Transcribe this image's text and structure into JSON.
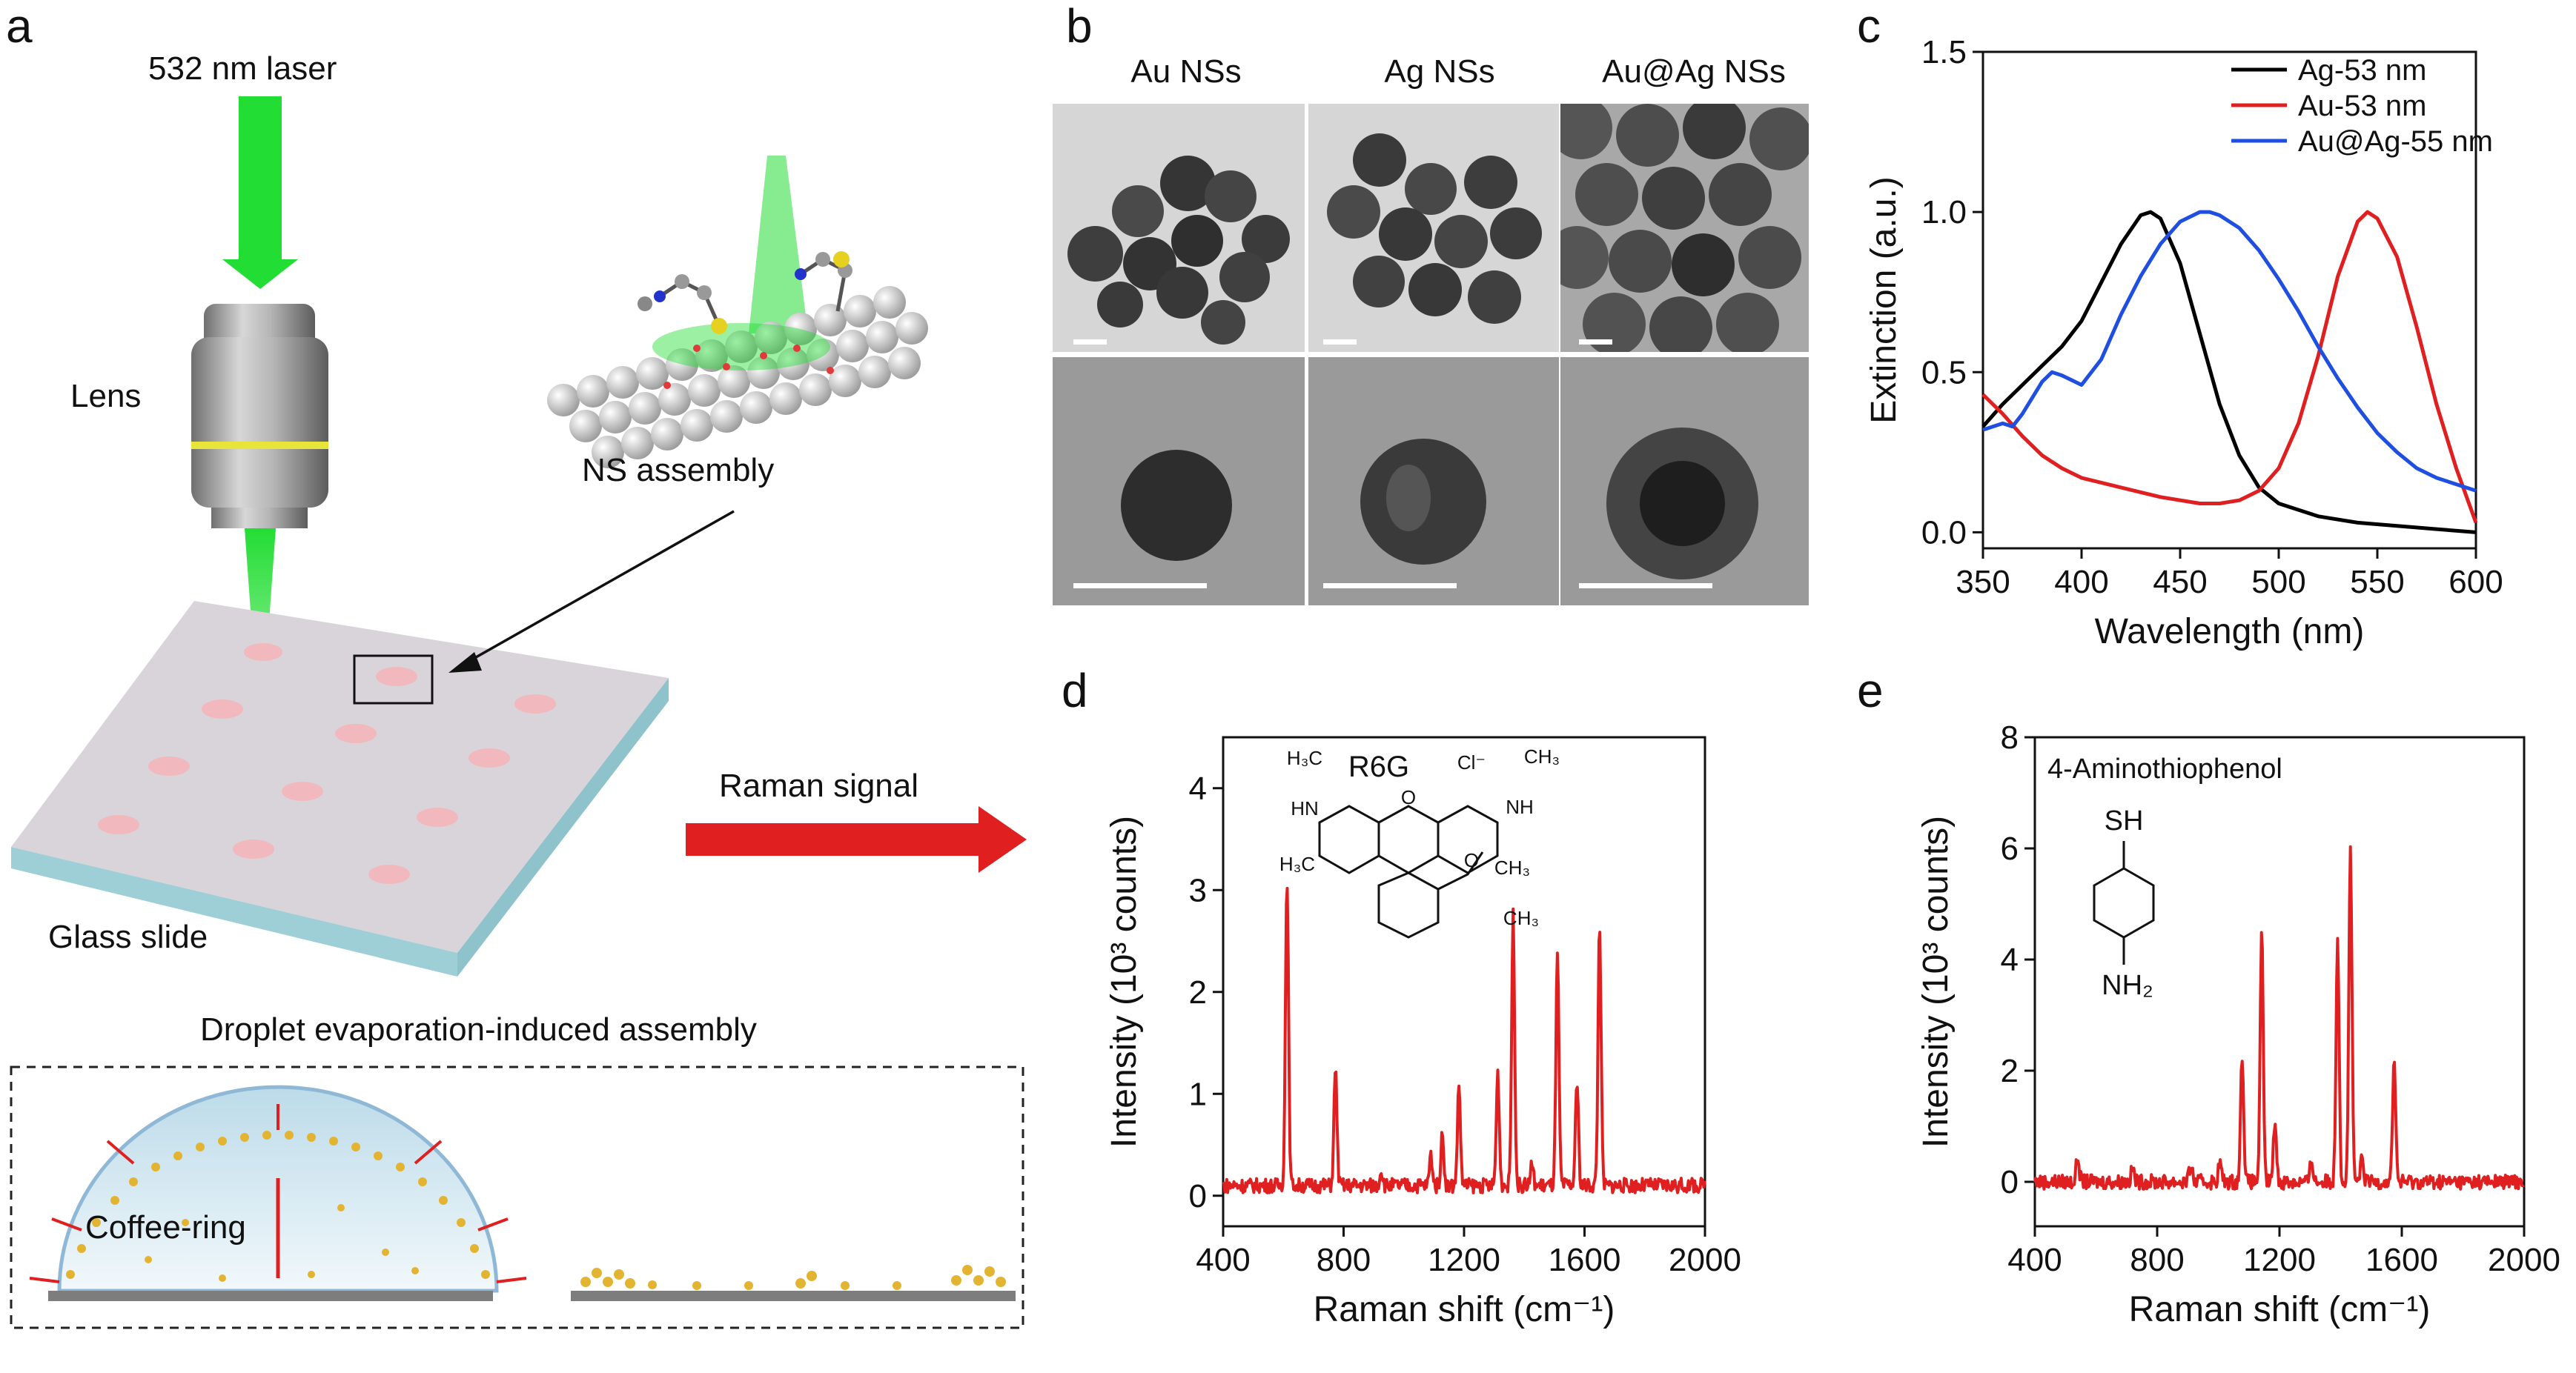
{
  "panels": {
    "a": "a",
    "b": "b",
    "c": "c",
    "d": "d",
    "e": "e"
  },
  "panel_a": {
    "laser_label": "532 nm laser",
    "lens_label": "Lens",
    "assembly_label": "NS assembly",
    "glass_label": "Glass slide",
    "signal_label": "Raman signal",
    "droplet_title": "Droplet evaporation-induced assembly",
    "coffee_label": "Coffee-ring",
    "colors": {
      "laser": "#22dd33",
      "arrow": "#e02020",
      "glass": "#9fcfd6",
      "lens": "#a6a6a6",
      "droplet": "#d7ecf4"
    }
  },
  "panel_b": {
    "columns": [
      "Au NSs",
      "Ag NSs",
      "Au@Ag NSs"
    ]
  },
  "chart_data": [
    {
      "panel": "c",
      "type": "line",
      "xlabel": "Wavelength (nm)",
      "ylabel": "Extinction (a.u.)",
      "xlim": [
        350,
        600
      ],
      "ylim": [
        -0.05,
        1.5
      ],
      "xticks": [
        "350",
        "400",
        "450",
        "500",
        "550",
        "600"
      ],
      "yticks": [
        "0.0",
        "0.5",
        "1.0",
        "1.5"
      ],
      "legend": "top-right",
      "series": [
        {
          "name": "Ag-53 nm",
          "color": "#000000",
          "x": [
            350,
            360,
            370,
            380,
            390,
            400,
            410,
            420,
            430,
            435,
            440,
            450,
            460,
            470,
            480,
            490,
            500,
            520,
            540,
            560,
            580,
            600
          ],
          "y": [
            0.33,
            0.4,
            0.46,
            0.52,
            0.58,
            0.66,
            0.78,
            0.9,
            0.99,
            1.0,
            0.98,
            0.84,
            0.62,
            0.4,
            0.24,
            0.14,
            0.09,
            0.05,
            0.03,
            0.02,
            0.01,
            0.0
          ]
        },
        {
          "name": "Au-53 nm",
          "color": "#e02020",
          "x": [
            350,
            360,
            370,
            380,
            390,
            400,
            420,
            440,
            460,
            470,
            480,
            490,
            500,
            510,
            520,
            530,
            540,
            545,
            550,
            560,
            570,
            580,
            590,
            600
          ],
          "y": [
            0.43,
            0.37,
            0.3,
            0.24,
            0.2,
            0.17,
            0.14,
            0.11,
            0.09,
            0.09,
            0.1,
            0.13,
            0.2,
            0.34,
            0.55,
            0.8,
            0.97,
            1.0,
            0.98,
            0.86,
            0.64,
            0.4,
            0.2,
            0.03
          ]
        },
        {
          "name": "Au@Ag-55 nm",
          "color": "#1f4fe0",
          "x": [
            350,
            360,
            365,
            370,
            380,
            385,
            390,
            400,
            410,
            420,
            430,
            440,
            450,
            460,
            465,
            470,
            480,
            490,
            500,
            510,
            520,
            530,
            540,
            550,
            560,
            570,
            580,
            600
          ],
          "y": [
            0.32,
            0.34,
            0.33,
            0.37,
            0.47,
            0.5,
            0.49,
            0.46,
            0.54,
            0.68,
            0.8,
            0.9,
            0.97,
            1.0,
            1.0,
            0.99,
            0.95,
            0.88,
            0.79,
            0.69,
            0.58,
            0.48,
            0.39,
            0.31,
            0.25,
            0.2,
            0.17,
            0.13
          ]
        }
      ]
    },
    {
      "panel": "d",
      "type": "line",
      "xlabel": "Raman shift (cm⁻¹)",
      "ylabel": "Intensity (10³ counts)",
      "xlim": [
        400,
        2000
      ],
      "ylim": [
        -0.3,
        4.5
      ],
      "xticks": [
        "400",
        "800",
        "1200",
        "1600",
        "2000"
      ],
      "yticks": [
        "0",
        "1",
        "2",
        "3",
        "4"
      ],
      "molecule": "R6G",
      "molecule_labels": {
        "ch3a": "H₃C",
        "nh": "HN",
        "cl": "Cl⁻",
        "ch3b": "CH₃",
        "nplus": "NH",
        "ch3c": "H₃C",
        "ch3d": "CH₃",
        "o": "O",
        "ester_o": "O",
        "ch3e": "CH₃"
      },
      "series": [
        {
          "name": "R6G",
          "color": "#e02020",
          "peaks": [
            [
              612,
              3.05
            ],
            [
              773,
              1.15
            ],
            [
              925,
              0.15
            ],
            [
              1090,
              0.3
            ],
            [
              1128,
              0.5
            ],
            [
              1183,
              0.98
            ],
            [
              1312,
              1.1
            ],
            [
              1363,
              2.65
            ],
            [
              1425,
              0.2
            ],
            [
              1510,
              2.25
            ],
            [
              1575,
              1.02
            ],
            [
              1650,
              2.6
            ]
          ],
          "baseline": 0.1
        }
      ]
    },
    {
      "panel": "e",
      "type": "line",
      "xlabel": "Raman shift (cm⁻¹)",
      "ylabel": "Intensity (10³ counts)",
      "xlim": [
        400,
        2000
      ],
      "ylim": [
        -0.8,
        8
      ],
      "xticks": [
        "400",
        "800",
        "1200",
        "1600",
        "2000"
      ],
      "yticks": [
        "0",
        "2",
        "4",
        "6",
        "8"
      ],
      "molecule": "4-Aminothiophenol",
      "molecule_labels": {
        "sh": "SH",
        "nh2": "NH₂"
      },
      "series": [
        {
          "name": "4-Aminothiophenol",
          "color": "#e02020",
          "peaks": [
            [
              540,
              0.45
            ],
            [
              720,
              0.25
            ],
            [
              910,
              0.3
            ],
            [
              1005,
              0.35
            ],
            [
              1078,
              2.3
            ],
            [
              1142,
              4.45
            ],
            [
              1185,
              1.1
            ],
            [
              1305,
              0.4
            ],
            [
              1390,
              4.45
            ],
            [
              1432,
              6.05
            ],
            [
              1470,
              0.4
            ],
            [
              1575,
              2.25
            ]
          ],
          "baseline": 0.0
        }
      ]
    }
  ]
}
